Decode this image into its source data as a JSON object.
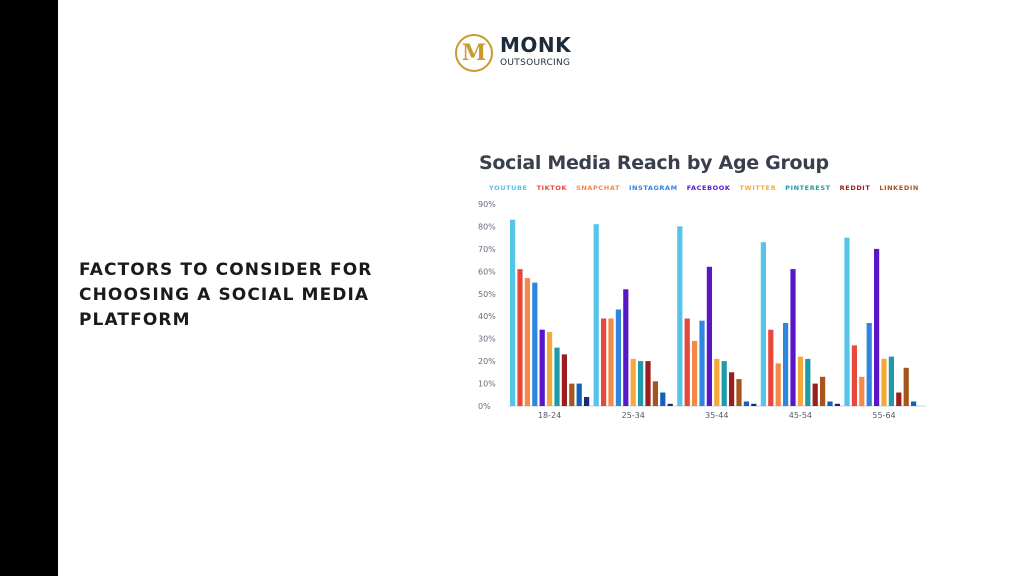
{
  "logo": {
    "badge_letter": "M",
    "title": "MONK",
    "subtitle": "OUTSOURCING",
    "colors": {
      "gold": "#c99a2e",
      "navy": "#1c2a3a"
    }
  },
  "heading": "FACTORS TO CONSIDER FOR CHOOSING A SOCIAL MEDIA PLATFORM",
  "chart_data": {
    "type": "bar",
    "title": "Social Media Reach by Age Group",
    "xlabel": "",
    "ylabel": "",
    "ylim": [
      0,
      90
    ],
    "yticks": [
      "0%",
      "10%",
      "20%",
      "30%",
      "40%",
      "50%",
      "60%",
      "70%",
      "80%",
      "90%"
    ],
    "grid": false,
    "legend_position": "top",
    "categories": [
      "18-24",
      "25-34",
      "35-44",
      "45-54",
      "55-64"
    ],
    "series": [
      {
        "name": "YOUTUBE",
        "color": "#56c3e8",
        "values": [
          83,
          81,
          80,
          73,
          75
        ]
      },
      {
        "name": "TIKTOK",
        "color": "#e8483a",
        "values": [
          61,
          39,
          39,
          34,
          27
        ]
      },
      {
        "name": "SNAPCHAT",
        "color": "#f5894a",
        "values": [
          57,
          39,
          29,
          19,
          13
        ]
      },
      {
        "name": "INSTAGRAM",
        "color": "#2e86de",
        "values": [
          55,
          43,
          38,
          37,
          37
        ]
      },
      {
        "name": "FACEBOOK",
        "color": "#5a17c9",
        "values": [
          34,
          52,
          62,
          61,
          70
        ]
      },
      {
        "name": "TWITTER",
        "color": "#f6a93b",
        "values": [
          33,
          21,
          21,
          22,
          21
        ]
      },
      {
        "name": "PINTEREST",
        "color": "#1f9aa8",
        "values": [
          26,
          20,
          20,
          21,
          22
        ]
      },
      {
        "name": "REDDIT",
        "color": "#9b1d1d",
        "values": [
          23,
          20,
          15,
          10,
          6
        ]
      },
      {
        "name": "LINKEDIN",
        "color": "#a4561c",
        "values": [
          10,
          11,
          12,
          13,
          17
        ]
      },
      {
        "name": "",
        "color": "#1560b8",
        "values": [
          10,
          6,
          2,
          2,
          2
        ]
      },
      {
        "name": "",
        "color": "#1a2a7a",
        "values": [
          4,
          1,
          1,
          1,
          0
        ]
      }
    ]
  }
}
